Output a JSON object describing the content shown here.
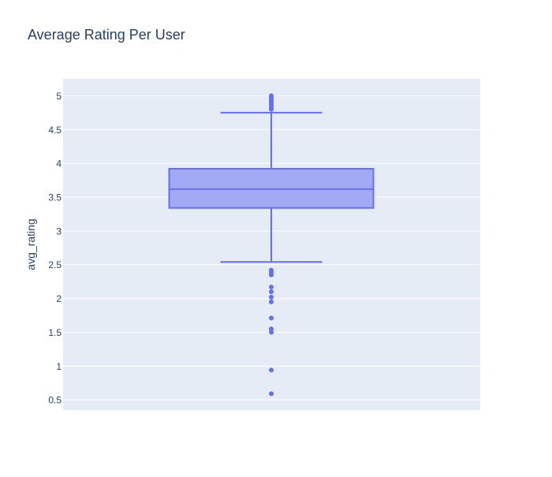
{
  "chart_data": {
    "type": "box",
    "title": "Average Rating Per User",
    "xlabel": "",
    "ylabel": "avg_rating",
    "y_ticks": [
      0.5,
      1,
      1.5,
      2,
      2.5,
      3,
      3.5,
      4,
      4.5,
      5
    ],
    "y_tick_labels": [
      "0.5",
      "1",
      "1.5",
      "2",
      "2.5",
      "3",
      "3.5",
      "4",
      "4.5",
      "5"
    ],
    "ylim": [
      0.35,
      5.25
    ],
    "grid": true,
    "box": {
      "lower_fence": 2.54,
      "q1": 3.34,
      "median": 3.62,
      "q3": 3.92,
      "upper_fence": 4.75
    },
    "outliers": [
      0.59,
      0.94,
      1.5,
      1.55,
      1.71,
      1.95,
      2.02,
      2.1,
      2.17,
      2.35,
      2.39,
      2.42,
      4.8,
      4.82,
      4.85,
      4.87,
      4.9,
      4.92,
      4.95,
      4.98,
      5.0
    ],
    "colors": {
      "box_line": "#636efa",
      "box_fill": "#a3aaf5",
      "plot_background": "#e5ecf6",
      "gridline": "#ffffff",
      "text": "#2a3f5f"
    }
  }
}
